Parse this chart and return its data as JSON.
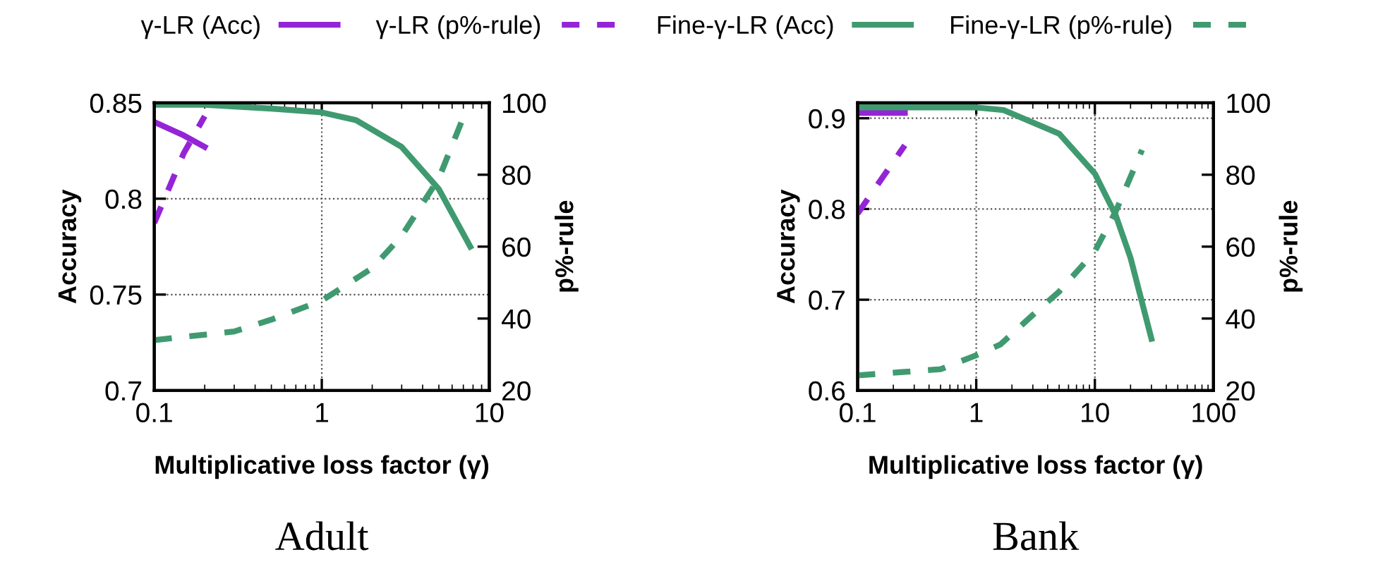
{
  "chart_data": [
    {
      "type": "line",
      "title": "Adult",
      "xlabel": "Multiplicative loss factor (γ)",
      "ylabel": "Accuracy",
      "y2label": "p%-rule",
      "log": "x",
      "grid": true,
      "legend": "top",
      "xlim": [
        0.1,
        10
      ],
      "xticks": [
        0.1,
        1,
        10
      ],
      "ylim": [
        0.7,
        0.85
      ],
      "yticks": [
        0.7,
        0.75,
        0.8,
        0.85
      ],
      "y2lim": [
        20,
        100
      ],
      "y2ticks": [
        20,
        40,
        60,
        80,
        100
      ],
      "series": [
        {
          "name": "γ-LR (Acc)",
          "color": "#9425d6",
          "line_style": "solid",
          "x": [
            0.1,
            0.15,
            0.2
          ],
          "values": [
            0.84,
            0.833,
            0.827
          ]
        },
        {
          "name": "γ-LR (p%-rule)",
          "color": "#9425d6",
          "line_style": "dashed",
          "axis": "y2",
          "x": [
            0.1,
            0.15,
            0.2
          ],
          "values": [
            66.6,
            86,
            96.3
          ]
        },
        {
          "name": "Fine-γ-LR (Acc)",
          "color": "#409a70",
          "line_style": "solid",
          "x": [
            0.1,
            0.2,
            0.5,
            1,
            1.6,
            3,
            5,
            7.7
          ],
          "values": [
            0.849,
            0.849,
            0.847,
            0.845,
            0.841,
            0.827,
            0.805,
            0.775
          ]
        },
        {
          "name": "Fine-γ-LR (p%-rule)",
          "color": "#409a70",
          "line_style": "dashed",
          "axis": "y2",
          "x": [
            0.1,
            0.3,
            0.5,
            1,
            2,
            3,
            5,
            7
          ],
          "values": [
            34,
            36.4,
            39.7,
            45,
            54,
            63,
            79,
            96
          ]
        }
      ]
    },
    {
      "type": "line",
      "title": "Bank",
      "xlabel": "Multiplicative loss factor (γ)",
      "ylabel": "Accuracy",
      "y2label": "p%-rule",
      "log": "x",
      "grid": true,
      "xlim": [
        0.1,
        100
      ],
      "xticks": [
        0.1,
        1,
        10,
        100
      ],
      "ylim": [
        0.6,
        0.917
      ],
      "yticks": [
        0.6,
        0.7,
        0.8,
        0.9
      ],
      "y2lim": [
        20,
        100
      ],
      "y2ticks": [
        20,
        40,
        60,
        80,
        100
      ],
      "series": [
        {
          "name": "γ-LR (Acc)",
          "color": "#9425d6",
          "line_style": "solid",
          "x": [
            0.1,
            0.25
          ],
          "values": [
            0.906,
            0.906
          ]
        },
        {
          "name": "γ-LR (p%-rule)",
          "color": "#9425d6",
          "line_style": "dashed",
          "axis": "y2",
          "x": [
            0.1,
            0.25
          ],
          "values": [
            69.2,
            88.2
          ]
        },
        {
          "name": "Fine-γ-LR (Acc)",
          "color": "#409a70",
          "line_style": "solid",
          "x": [
            0.1,
            1,
            1.7,
            5,
            10,
            15,
            20,
            30
          ],
          "values": [
            0.912,
            0.912,
            0.909,
            0.883,
            0.839,
            0.793,
            0.746,
            0.657
          ]
        },
        {
          "name": "Fine-γ-LR (p%-rule)",
          "color": "#409a70",
          "line_style": "dashed",
          "axis": "y2",
          "x": [
            0.1,
            0.5,
            1,
            1.6,
            3,
            5,
            10,
            15,
            25
          ],
          "values": [
            24.2,
            25.9,
            29.8,
            32.8,
            41,
            47.5,
            58.7,
            69.8,
            86.9
          ]
        }
      ]
    }
  ]
}
